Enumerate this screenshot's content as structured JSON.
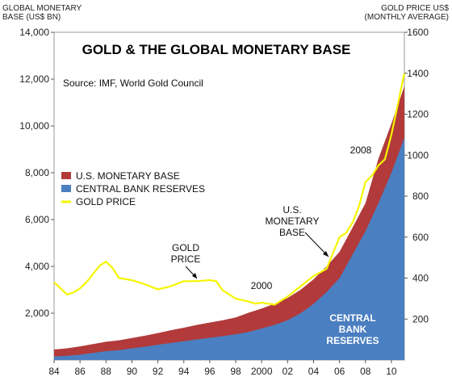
{
  "chart_data": {
    "type": "area",
    "title": "GOLD & THE GLOBAL MONETARY BASE",
    "source": "Source:  IMF, World Gold Council",
    "left_axis_label": [
      "GLOBAL MONETARY",
      "BASE (US$ BN)"
    ],
    "right_axis_label": [
      "GOLD PRICE US$",
      "(MONTHLY AVERAGE)"
    ],
    "ylim_left": [
      0,
      14000
    ],
    "ylim_right": [
      0,
      1600
    ],
    "xlim": [
      1984,
      2011
    ],
    "x_ticks": [
      "84",
      "86",
      "88",
      "90",
      "92",
      "94",
      "96",
      "98",
      "2000",
      "02",
      "04",
      "06",
      "08",
      "10"
    ],
    "y_ticks_left": [
      "2,000",
      "4,000",
      "6,000",
      "8,000",
      "10,000",
      "12,000",
      "14,000"
    ],
    "y_ticks_right": [
      "200",
      "400",
      "600",
      "800",
      "1000",
      "1200",
      "1400",
      "1600"
    ],
    "legend": [
      {
        "label": "U.S. MONETARY BASE",
        "color": "#b23a3a"
      },
      {
        "label": "CENTRAL BANK RESERVES",
        "color": "#4a7fc1"
      },
      {
        "label": "GOLD PRICE",
        "color": "#f5f500"
      }
    ],
    "series": [
      {
        "name": "CENTRAL BANK RESERVES",
        "axis": "left",
        "x": [
          1984,
          1985,
          1986,
          1987,
          1988,
          1989,
          1990,
          1991,
          1992,
          1993,
          1994,
          1995,
          1996,
          1997,
          1998,
          1999,
          2000,
          2001,
          2002,
          2003,
          2004,
          2005,
          2006,
          2007,
          2008,
          2009,
          2010,
          2011
        ],
        "values": [
          150,
          180,
          230,
          300,
          380,
          420,
          500,
          570,
          650,
          730,
          800,
          880,
          950,
          1020,
          1100,
          1200,
          1350,
          1500,
          1700,
          2000,
          2400,
          2900,
          3500,
          4500,
          5500,
          6700,
          8000,
          9500
        ]
      },
      {
        "name": "U.S. MONETARY BASE",
        "axis": "left",
        "stacked_on": "CENTRAL BANK RESERVES",
        "x": [
          1984,
          1985,
          1986,
          1987,
          1988,
          1989,
          1990,
          1991,
          1992,
          1993,
          1994,
          1995,
          1996,
          1997,
          1998,
          1999,
          2000,
          2001,
          2002,
          2003,
          2004,
          2005,
          2006,
          2007,
          2008,
          2009,
          2010,
          2011
        ],
        "values": [
          300,
          320,
          350,
          380,
          400,
          420,
          440,
          470,
          500,
          540,
          580,
          620,
          650,
          680,
          720,
          820,
          850,
          900,
          950,
          1000,
          1050,
          1100,
          1120,
          1150,
          1200,
          1900,
          2100,
          2200
        ]
      },
      {
        "name": "GOLD PRICE",
        "axis": "right",
        "x": [
          1984,
          1984.5,
          1985,
          1985.5,
          1986,
          1986.5,
          1987,
          1987.5,
          1988,
          1988.5,
          1989,
          1990,
          1991,
          1992,
          1993,
          1994,
          1995,
          1996,
          1996.5,
          1997,
          1998,
          1999,
          1999.5,
          2000,
          2001,
          2002,
          2003,
          2004,
          2005,
          2006,
          2006.5,
          2007,
          2007.5,
          2008,
          2008.5,
          2009,
          2009.5,
          2010,
          2010.5,
          2011
        ],
        "values": [
          380,
          350,
          320,
          330,
          350,
          380,
          420,
          460,
          480,
          450,
          400,
          390,
          370,
          345,
          360,
          385,
          385,
          390,
          385,
          340,
          300,
          285,
          275,
          280,
          270,
          310,
          360,
          410,
          445,
          600,
          620,
          670,
          750,
          870,
          900,
          950,
          980,
          1100,
          1250,
          1400
        ]
      }
    ],
    "annotations": {
      "gold_price": [
        "GOLD",
        "PRICE"
      ],
      "us_base": [
        "U.S.",
        "MONETARY",
        "BASE"
      ],
      "year_2000": "2000",
      "year_2008": "2008",
      "cbr": [
        "CENTRAL",
        "BANK",
        "RESERVES"
      ]
    },
    "colors": {
      "reserves": "#4a7fc1",
      "us_base": "#b23a3a",
      "gold": "#f5f500",
      "plot_bg": "#ffffff"
    }
  }
}
